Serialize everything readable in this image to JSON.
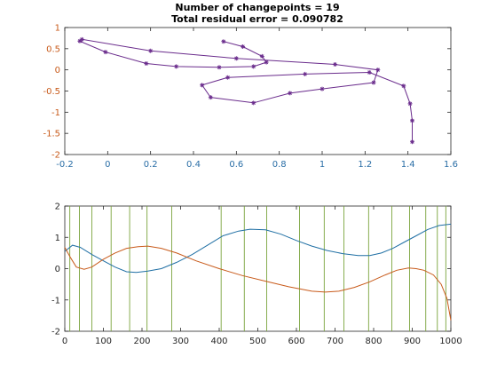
{
  "chart_data": [
    {
      "type": "line",
      "title": "Number of changepoints = 19",
      "subtitle": "Total residual error = 0.090782",
      "xlim": [
        -0.2,
        1.6
      ],
      "ylim": [
        -2,
        1
      ],
      "xticks": [
        "-0.2",
        "0",
        "0.2",
        "0.4",
        "0.6",
        "0.8",
        "1",
        "1.2",
        "1.4",
        "1.6"
      ],
      "yticks": [
        "-2",
        "-1.5",
        "-1",
        "-0.5",
        "0",
        "0.5",
        "1"
      ],
      "x_axis_color": "#2a6ea6",
      "y_axis_color": "#c85a1a",
      "series": [
        {
          "color": "#6a2c8c",
          "marker": "*",
          "points": [
            [
              0.54,
              0.67
            ],
            [
              0.63,
              0.55
            ],
            [
              0.72,
              0.32
            ],
            [
              0.74,
              0.18
            ],
            [
              0.68,
              0.08
            ],
            [
              0.52,
              0.06
            ],
            [
              0.32,
              0.08
            ],
            [
              0.18,
              0.15
            ],
            [
              -0.01,
              0.42
            ],
            [
              -0.13,
              0.68
            ],
            [
              -0.12,
              0.72
            ],
            [
              0.2,
              0.45
            ],
            [
              0.6,
              0.27
            ],
            [
              1.06,
              0.13
            ],
            [
              1.26,
              0.0
            ],
            [
              1.24,
              -0.3
            ],
            [
              1.0,
              -0.45
            ],
            [
              0.85,
              -0.55
            ],
            [
              0.68,
              -0.78
            ],
            [
              0.48,
              -0.65
            ],
            [
              0.44,
              -0.36
            ],
            [
              0.56,
              -0.18
            ],
            [
              0.92,
              -0.1
            ],
            [
              1.22,
              -0.06
            ],
            [
              1.38,
              -0.38
            ],
            [
              1.41,
              -0.8
            ],
            [
              1.42,
              -1.2
            ],
            [
              1.42,
              -1.7
            ]
          ]
        }
      ]
    },
    {
      "type": "line",
      "xlim": [
        0,
        1000
      ],
      "ylim": [
        -2,
        2
      ],
      "xticks": [
        "0",
        "100",
        "200",
        "300",
        "400",
        "500",
        "600",
        "700",
        "800",
        "900",
        "1000"
      ],
      "yticks": [
        "-2",
        "-1",
        "0",
        "1",
        "2"
      ],
      "changepoints": [
        13,
        38,
        70,
        120,
        168,
        213,
        277,
        405,
        465,
        523,
        608,
        672,
        723,
        787,
        847,
        893,
        935,
        965,
        987
      ],
      "changepoint_color": "#7aa43c",
      "series": [
        {
          "color": "#1f6fa4",
          "points": [
            [
              0,
              0.55
            ],
            [
              20,
              0.75
            ],
            [
              40,
              0.68
            ],
            [
              70,
              0.45
            ],
            [
              100,
              0.25
            ],
            [
              130,
              0.05
            ],
            [
              160,
              -0.1
            ],
            [
              185,
              -0.12
            ],
            [
              215,
              -0.08
            ],
            [
              250,
              0.0
            ],
            [
              290,
              0.2
            ],
            [
              330,
              0.45
            ],
            [
              370,
              0.75
            ],
            [
              410,
              1.05
            ],
            [
              450,
              1.2
            ],
            [
              480,
              1.26
            ],
            [
              520,
              1.24
            ],
            [
              560,
              1.1
            ],
            [
              600,
              0.9
            ],
            [
              640,
              0.72
            ],
            [
              680,
              0.58
            ],
            [
              720,
              0.48
            ],
            [
              760,
              0.42
            ],
            [
              790,
              0.42
            ],
            [
              820,
              0.5
            ],
            [
              850,
              0.65
            ],
            [
              880,
              0.85
            ],
            [
              910,
              1.05
            ],
            [
              940,
              1.25
            ],
            [
              970,
              1.38
            ],
            [
              1000,
              1.42
            ]
          ]
        },
        {
          "color": "#c85a1a",
          "points": [
            [
              0,
              0.68
            ],
            [
              15,
              0.35
            ],
            [
              30,
              0.05
            ],
            [
              50,
              -0.02
            ],
            [
              70,
              0.05
            ],
            [
              100,
              0.3
            ],
            [
              130,
              0.5
            ],
            [
              160,
              0.65
            ],
            [
              190,
              0.7
            ],
            [
              215,
              0.72
            ],
            [
              250,
              0.65
            ],
            [
              290,
              0.5
            ],
            [
              340,
              0.25
            ],
            [
              400,
              0.0
            ],
            [
              460,
              -0.22
            ],
            [
              520,
              -0.4
            ],
            [
              580,
              -0.58
            ],
            [
              640,
              -0.72
            ],
            [
              675,
              -0.75
            ],
            [
              710,
              -0.72
            ],
            [
              750,
              -0.6
            ],
            [
              790,
              -0.42
            ],
            [
              830,
              -0.2
            ],
            [
              860,
              -0.05
            ],
            [
              890,
              0.02
            ],
            [
              910,
              0.0
            ],
            [
              930,
              -0.05
            ],
            [
              955,
              -0.2
            ],
            [
              975,
              -0.5
            ],
            [
              990,
              -0.95
            ],
            [
              1000,
              -1.65
            ]
          ]
        }
      ]
    }
  ]
}
